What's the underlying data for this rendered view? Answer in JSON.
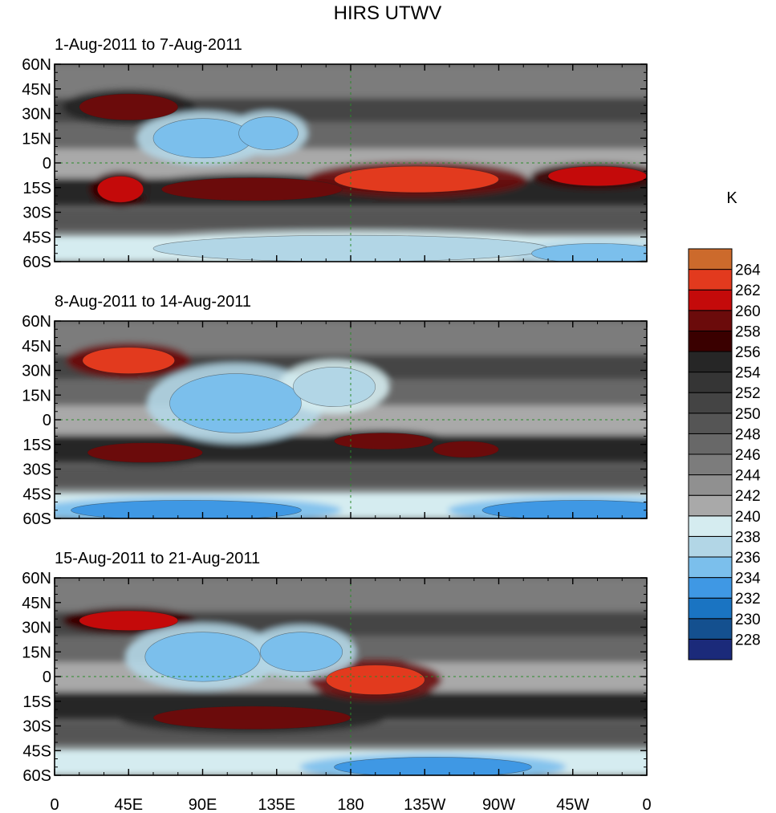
{
  "chart_data": {
    "type": "heatmap",
    "title": "HIRS UTWV",
    "units": "K",
    "colorbar": {
      "levels": [
        228,
        230,
        232,
        234,
        236,
        238,
        240,
        242,
        244,
        246,
        248,
        250,
        252,
        254,
        256,
        258,
        260,
        262,
        264
      ],
      "colors": [
        "#1b2a7a",
        "#14508f",
        "#1a74c2",
        "#3f98e4",
        "#7bbfec",
        "#b2d6e6",
        "#d5ecf0",
        "#a9a9a9",
        "#909090",
        "#7c7c7c",
        "#686868",
        "#555555",
        "#444444",
        "#353535",
        "#262626",
        "#3a0000",
        "#6b0b0b",
        "#c40a0a",
        "#e23a1e",
        "#cc6a2c"
      ]
    },
    "x_ticks": [
      "0",
      "45E",
      "90E",
      "135E",
      "180",
      "135W",
      "90W",
      "45W",
      "0"
    ],
    "y_ticks": [
      "60N",
      "45N",
      "30N",
      "15N",
      "0",
      "15S",
      "30S",
      "45S",
      "60S"
    ],
    "xlim": [
      0,
      360
    ],
    "ylim": [
      -60,
      60
    ],
    "panels": [
      {
        "label": "1-Aug-2011 to 7-Aug-2011",
        "features": [
          {
            "lon": 60,
            "lat": 34,
            "wlon": 14,
            "wlat": 6,
            "value": 262
          },
          {
            "lon": 45,
            "lat": 34,
            "wlon": 30,
            "wlat": 8,
            "value": 258
          },
          {
            "lon": 40,
            "lat": -16,
            "wlon": 14,
            "wlat": 8,
            "value": 260
          },
          {
            "lon": 120,
            "lat": -16,
            "wlon": 55,
            "wlat": 7,
            "value": 258
          },
          {
            "lon": 220,
            "lat": -10,
            "wlon": 50,
            "wlat": 8,
            "value": 262
          },
          {
            "lon": 330,
            "lat": -8,
            "wlon": 30,
            "wlat": 6,
            "value": 260
          },
          {
            "lon": 90,
            "lat": 15,
            "wlon": 30,
            "wlat": 12,
            "value": 234
          },
          {
            "lon": 130,
            "lat": 18,
            "wlon": 18,
            "wlat": 10,
            "value": 234
          },
          {
            "lon": 180,
            "lat": -52,
            "wlon": 120,
            "wlat": 8,
            "value": 236
          },
          {
            "lon": 330,
            "lat": -55,
            "wlon": 40,
            "wlat": 6,
            "value": 234
          }
        ]
      },
      {
        "label": "8-Aug-2011 to 14-Aug-2011",
        "features": [
          {
            "lon": 45,
            "lat": 36,
            "wlon": 28,
            "wlat": 8,
            "value": 262
          },
          {
            "lon": 55,
            "lat": -20,
            "wlon": 35,
            "wlat": 6,
            "value": 258
          },
          {
            "lon": 200,
            "lat": -13,
            "wlon": 30,
            "wlat": 5,
            "value": 258
          },
          {
            "lon": 250,
            "lat": -18,
            "wlon": 20,
            "wlat": 5,
            "value": 258
          },
          {
            "lon": 110,
            "lat": 10,
            "wlon": 40,
            "wlat": 18,
            "value": 234
          },
          {
            "lon": 170,
            "lat": 20,
            "wlon": 25,
            "wlat": 12,
            "value": 236
          },
          {
            "lon": 80,
            "lat": -55,
            "wlon": 70,
            "wlat": 6,
            "value": 232
          },
          {
            "lon": 320,
            "lat": -55,
            "wlon": 60,
            "wlat": 6,
            "value": 232
          }
        ]
      },
      {
        "label": "15-Aug-2011 to 21-Aug-2011",
        "features": [
          {
            "lon": 45,
            "lat": 34,
            "wlon": 30,
            "wlat": 6,
            "value": 260
          },
          {
            "lon": 120,
            "lat": -25,
            "wlon": 60,
            "wlat": 7,
            "value": 258
          },
          {
            "lon": 195,
            "lat": -2,
            "wlon": 30,
            "wlat": 9,
            "value": 262
          },
          {
            "lon": 90,
            "lat": 12,
            "wlon": 35,
            "wlat": 15,
            "value": 234
          },
          {
            "lon": 150,
            "lat": 15,
            "wlon": 25,
            "wlat": 12,
            "value": 234
          },
          {
            "lon": 230,
            "lat": -55,
            "wlon": 60,
            "wlat": 6,
            "value": 232
          }
        ]
      }
    ]
  }
}
